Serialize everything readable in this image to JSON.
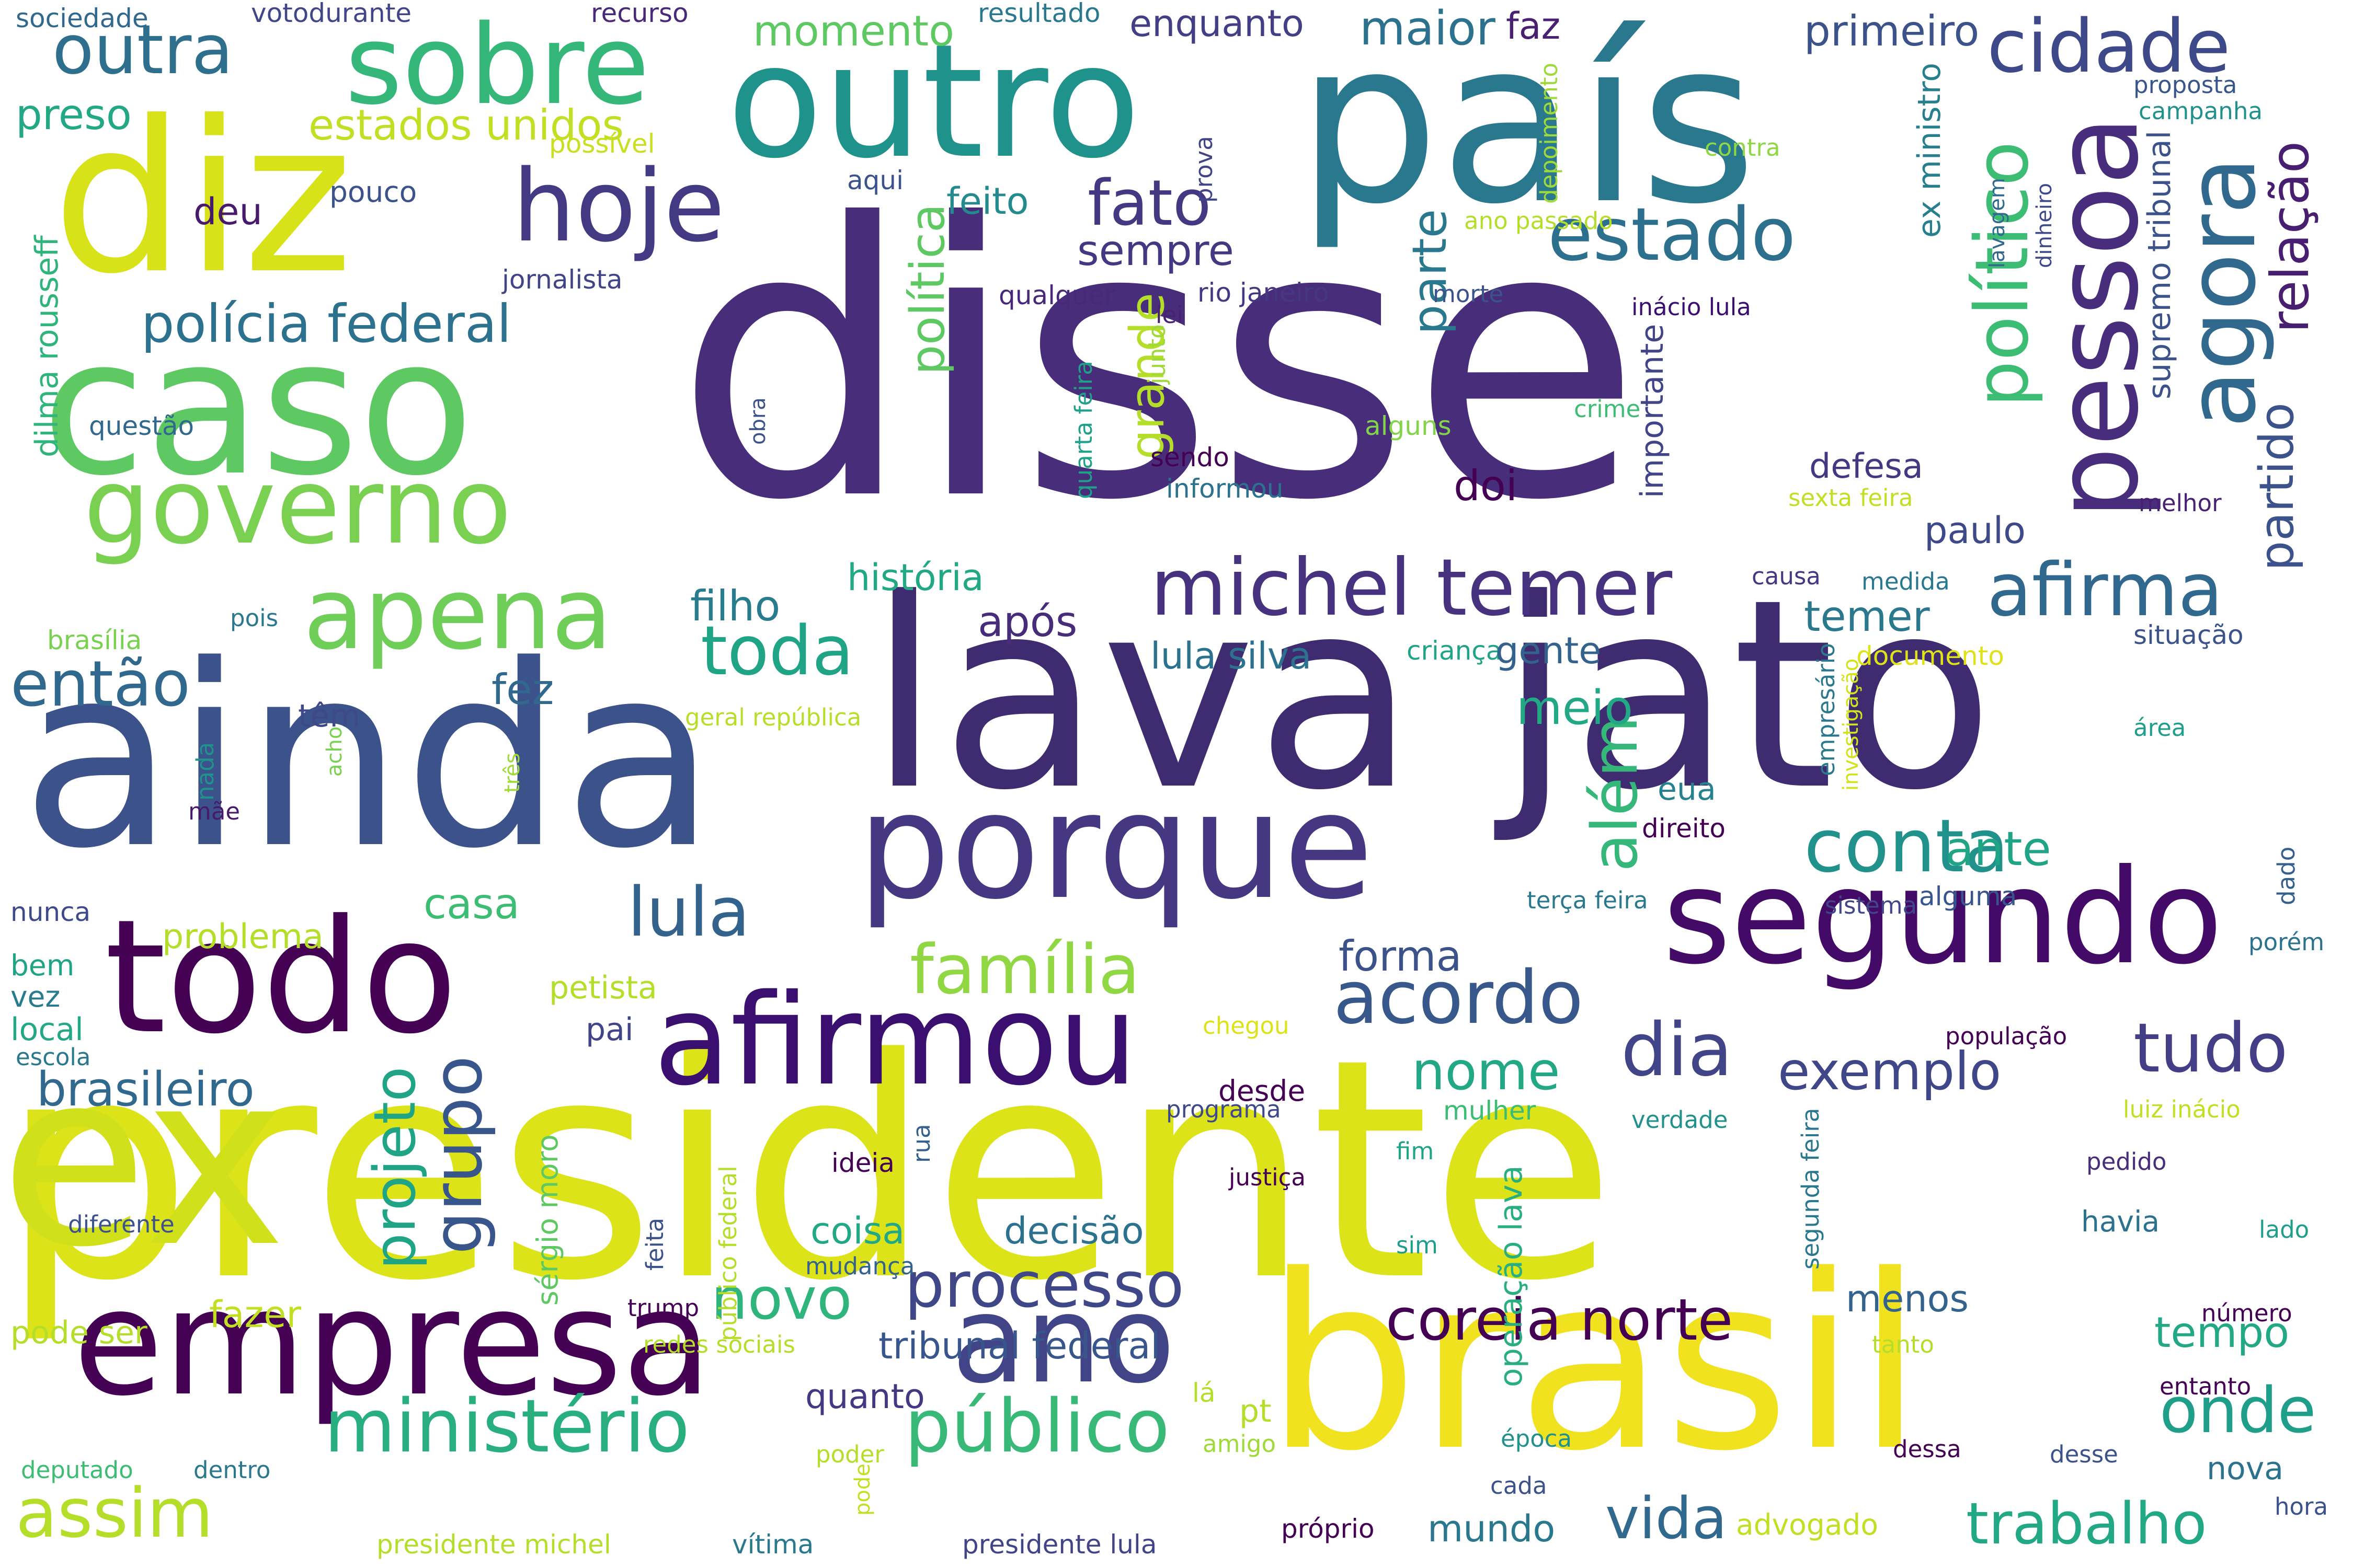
{
  "words": [
    {
      "text": "disse",
      "color": "#482d7a"
    },
    {
      "text": "presidente",
      "color": "#dce319"
    },
    {
      "text": "lava jato",
      "color": "#3f2c70"
    },
    {
      "text": "ainda",
      "color": "#3b528b"
    },
    {
      "text": "brasil",
      "color": "#f0e21e"
    },
    {
      "text": "ex",
      "color": "#d0e11c"
    },
    {
      "text": "país",
      "color": "#2a788e"
    },
    {
      "text": "outro",
      "color": "#20928c"
    },
    {
      "text": "diz",
      "color": "#d8e219"
    },
    {
      "text": "caso",
      "color": "#5ec962"
    },
    {
      "text": "todo",
      "color": "#440154"
    },
    {
      "text": "empresa",
      "color": "#440154"
    },
    {
      "text": "porque",
      "color": "#453781"
    },
    {
      "text": "segundo",
      "color": "#440a68"
    },
    {
      "text": "afirmou",
      "color": "#3b0f70"
    },
    {
      "text": "ano",
      "color": "#414487"
    },
    {
      "text": "sobre",
      "color": "#35b779"
    },
    {
      "text": "governo",
      "color": "#7ad151"
    },
    {
      "text": "pessoa",
      "color": "#472d7b"
    },
    {
      "text": "hoje",
      "color": "#443983"
    },
    {
      "text": "agora",
      "color": "#31688e"
    },
    {
      "text": "apena",
      "color": "#6ece58"
    },
    {
      "text": "michel temer",
      "color": "#46327e"
    },
    {
      "text": "ministério",
      "color": "#29af7f"
    },
    {
      "text": "público",
      "color": "#38b977"
    },
    {
      "text": "processo",
      "color": "#3f4788"
    },
    {
      "text": "cidade",
      "color": "#3e4989"
    },
    {
      "text": "político",
      "color": "#3dbc74"
    },
    {
      "text": "afirma",
      "color": "#31688e"
    },
    {
      "text": "estado",
      "color": "#2d708e"
    },
    {
      "text": "conta",
      "color": "#21918c"
    },
    {
      "text": "toda",
      "color": "#20a486"
    },
    {
      "text": "lula",
      "color": "#33638d"
    },
    {
      "text": "família",
      "color": "#90d743"
    },
    {
      "text": "acordo",
      "color": "#38588c"
    },
    {
      "text": "dia",
      "color": "#414487"
    },
    {
      "text": "tudo",
      "color": "#433e85"
    },
    {
      "text": "assim",
      "color": "#b5de2b"
    },
    {
      "text": "trabalho",
      "color": "#22a884"
    },
    {
      "text": "coreia norte",
      "color": "#440154"
    },
    {
      "text": "onde",
      "color": "#1f9e89"
    },
    {
      "text": "fato",
      "color": "#453781"
    },
    {
      "text": "então",
      "color": "#31688e"
    },
    {
      "text": "grupo",
      "color": "#39568c"
    },
    {
      "text": "além",
      "color": "#35b779"
    },
    {
      "text": "novo",
      "color": "#2fb47c"
    },
    {
      "text": "vida",
      "color": "#31688e"
    },
    {
      "text": "exemplo",
      "color": "#3f4788"
    },
    {
      "text": "relação",
      "color": "#481f70"
    },
    {
      "text": "polícia federal",
      "color": "#2c728e"
    },
    {
      "text": "outra",
      "color": "#2e6f8e"
    },
    {
      "text": "maior",
      "color": "#2c728e"
    },
    {
      "text": "primeiro",
      "color": "#3b528b"
    },
    {
      "text": "estados unidos",
      "color": "#c2df23"
    },
    {
      "text": "momento",
      "color": "#5ec962"
    },
    {
      "text": "enquanto",
      "color": "#433e85"
    },
    {
      "text": "faz",
      "color": "#482173"
    },
    {
      "text": "resultado",
      "color": "#2a788e"
    },
    {
      "text": "recurso",
      "color": "#482878"
    },
    {
      "text": "votodurante",
      "color": "#404688"
    },
    {
      "text": "sociedade",
      "color": "#31688e"
    },
    {
      "text": "preso",
      "color": "#22a884"
    },
    {
      "text": "possível",
      "color": "#c8e020"
    },
    {
      "text": "pouco",
      "color": "#3b528b"
    },
    {
      "text": "aqui",
      "color": "#3b528b"
    },
    {
      "text": "deu",
      "color": "#481a6c"
    },
    {
      "text": "feito",
      "color": "#238a8d"
    },
    {
      "text": "sempre",
      "color": "#453882"
    },
    {
      "text": "política",
      "color": "#5ec962"
    },
    {
      "text": "grande",
      "color": "#b5de2b"
    },
    {
      "text": "parte",
      "color": "#2a788e"
    },
    {
      "text": "jornalista",
      "color": "#414487"
    },
    {
      "text": "qualquer",
      "color": "#482878"
    },
    {
      "text": "rio janeiro",
      "color": "#453781"
    },
    {
      "text": "lei",
      "color": "#482173"
    },
    {
      "text": "morte",
      "color": "#3b528b"
    },
    {
      "text": "ano passado",
      "color": "#b5de2b"
    },
    {
      "text": "depoimento",
      "color": "#9fda3a"
    },
    {
      "text": "prova",
      "color": "#414487"
    },
    {
      "text": "contra",
      "color": "#8fd744"
    },
    {
      "text": "proposta",
      "color": "#39568c"
    },
    {
      "text": "campanha",
      "color": "#21918c"
    },
    {
      "text": "ex ministro",
      "color": "#277f8e"
    },
    {
      "text": "supremo tribunal",
      "color": "#3b528b"
    },
    {
      "text": "dinheiro",
      "color": "#3e4989"
    },
    {
      "text": "lavagem",
      "color": "#31688e"
    },
    {
      "text": "inácio lula",
      "color": "#3b0f70"
    },
    {
      "text": "partido",
      "color": "#3b528b"
    },
    {
      "text": "importante",
      "color": "#414487"
    },
    {
      "text": "defesa",
      "color": "#453781"
    },
    {
      "text": "paulo",
      "color": "#3e4989"
    },
    {
      "text": "melhor",
      "color": "#482173"
    },
    {
      "text": "sexta feira",
      "color": "#c2df23"
    },
    {
      "text": "crime",
      "color": "#3dbc74"
    },
    {
      "text": "alguns",
      "color": "#84d44b"
    },
    {
      "text": "sendo",
      "color": "#440154"
    },
    {
      "text": "informou",
      "color": "#2c728e"
    },
    {
      "text": "obra",
      "color": "#3b528b"
    },
    {
      "text": "junto",
      "color": "#9fda3a"
    },
    {
      "text": "quarta feira",
      "color": "#1fa088"
    },
    {
      "text": "doi",
      "color": "#440154"
    },
    {
      "text": "questão",
      "color": "#31688e"
    },
    {
      "text": "dilma rousseff",
      "color": "#2fb47c"
    },
    {
      "text": "brasília",
      "color": "#7ad151"
    },
    {
      "text": "pois",
      "color": "#2a788e"
    },
    {
      "text": "história",
      "color": "#22a884"
    },
    {
      "text": "filho",
      "color": "#287c8e"
    },
    {
      "text": "após",
      "color": "#472c7a"
    },
    {
      "text": "temer",
      "color": "#2a788e"
    },
    {
      "text": "lula silva",
      "color": "#2c728e"
    },
    {
      "text": "criança",
      "color": "#20a386"
    },
    {
      "text": "gente",
      "color": "#33638d"
    },
    {
      "text": "causa",
      "color": "#453781"
    },
    {
      "text": "medida",
      "color": "#2a788e"
    },
    {
      "text": "documento",
      "color": "#dde318"
    },
    {
      "text": "situação",
      "color": "#3b528b"
    },
    {
      "text": "meio",
      "color": "#22a884"
    },
    {
      "text": "fez",
      "color": "#31688e"
    },
    {
      "text": "têm",
      "color": "#3e4989"
    },
    {
      "text": "geral república",
      "color": "#b8de29"
    },
    {
      "text": "empresário",
      "color": "#2a788e"
    },
    {
      "text": "investigação",
      "color": "#d2e21b"
    },
    {
      "text": "área",
      "color": "#1f9e89"
    },
    {
      "text": "nada",
      "color": "#21918c"
    },
    {
      "text": "acho",
      "color": "#7ad151"
    },
    {
      "text": "três",
      "color": "#a0da39"
    },
    {
      "text": "mãe",
      "color": "#481a6c"
    },
    {
      "text": "eua",
      "color": "#26828e"
    },
    {
      "text": "direito",
      "color": "#440154"
    },
    {
      "text": "ante",
      "color": "#20a486"
    },
    {
      "text": "dado",
      "color": "#355f8d"
    },
    {
      "text": "alguma",
      "color": "#39568c"
    },
    {
      "text": "porém",
      "color": "#2c728e"
    },
    {
      "text": "sistema",
      "color": "#404688"
    },
    {
      "text": "terça feira",
      "color": "#2a788e"
    },
    {
      "text": "nunca",
      "color": "#3e4a89"
    },
    {
      "text": "casa",
      "color": "#3dbc74"
    },
    {
      "text": "problema",
      "color": "#b5de2b"
    },
    {
      "text": "forma",
      "color": "#3b528b"
    },
    {
      "text": "bem",
      "color": "#20a486"
    },
    {
      "text": "vez",
      "color": "#287c8e"
    },
    {
      "text": "local",
      "color": "#22a884"
    },
    {
      "text": "escola",
      "color": "#2a788e"
    },
    {
      "text": "petista",
      "color": "#b5de2b"
    },
    {
      "text": "pai",
      "color": "#414487"
    },
    {
      "text": "chegou",
      "color": "#dce319"
    },
    {
      "text": "projeto",
      "color": "#20a486"
    },
    {
      "text": "sérgio moro",
      "color": "#5ec962"
    },
    {
      "text": "nome",
      "color": "#22a884"
    },
    {
      "text": "desde",
      "color": "#440154"
    },
    {
      "text": "programa",
      "color": "#3e4989"
    },
    {
      "text": "mulher",
      "color": "#3dbc74"
    },
    {
      "text": "verdade",
      "color": "#21918c"
    },
    {
      "text": "população",
      "color": "#440154"
    },
    {
      "text": "luiz inácio",
      "color": "#c2df23"
    },
    {
      "text": "brasileiro",
      "color": "#31688e"
    },
    {
      "text": "ideia",
      "color": "#440154"
    },
    {
      "text": "rua",
      "color": "#355f8d"
    },
    {
      "text": "público federal",
      "color": "#b5de2b"
    },
    {
      "text": "feita",
      "color": "#3b528b"
    },
    {
      "text": "justiça",
      "color": "#440154"
    },
    {
      "text": "fim",
      "color": "#20a486"
    },
    {
      "text": "sim",
      "color": "#1f9e89"
    },
    {
      "text": "segunda feira",
      "color": "#2a788e"
    },
    {
      "text": "operação lava",
      "color": "#29af7f"
    },
    {
      "text": "pedido",
      "color": "#472d7b"
    },
    {
      "text": "havia",
      "color": "#2c728e"
    },
    {
      "text": "lado",
      "color": "#1f9e89"
    },
    {
      "text": "diferente",
      "color": "#3b528b"
    },
    {
      "text": "coisa",
      "color": "#22a884"
    },
    {
      "text": "decisão",
      "color": "#2c728e"
    },
    {
      "text": "mudança",
      "color": "#33638d"
    },
    {
      "text": "menos",
      "color": "#33638d"
    },
    {
      "text": "tempo",
      "color": "#22a884"
    },
    {
      "text": "número",
      "color": "#440154"
    },
    {
      "text": "pode ser",
      "color": "#b5de2b"
    },
    {
      "text": "fazer",
      "color": "#c2df23"
    },
    {
      "text": "trump",
      "color": "#440154"
    },
    {
      "text": "redes sociais",
      "color": "#b5de2b"
    },
    {
      "text": "tribunal federal",
      "color": "#39568c"
    },
    {
      "text": "tanto",
      "color": "#b5de2b"
    },
    {
      "text": "entanto",
      "color": "#440154"
    },
    {
      "text": "quanto",
      "color": "#453781"
    },
    {
      "text": "lá",
      "color": "#b5de2b"
    },
    {
      "text": "pt",
      "color": "#b5de2b"
    },
    {
      "text": "época",
      "color": "#21918c"
    },
    {
      "text": "nova",
      "color": "#2c728e"
    },
    {
      "text": "deputado",
      "color": "#3dbc74"
    },
    {
      "text": "dentro",
      "color": "#2a788e"
    },
    {
      "text": "poder",
      "color": "#b5de2b"
    },
    {
      "text": "amigo",
      "color": "#a0da39"
    },
    {
      "text": "dessa",
      "color": "#440154"
    },
    {
      "text": "desse",
      "color": "#3b528b"
    },
    {
      "text": "cada",
      "color": "#3b528b"
    },
    {
      "text": "pode",
      "color": "#c2df23"
    },
    {
      "text": "presidente michel",
      "color": "#b5de2b"
    },
    {
      "text": "vítima",
      "color": "#2a788e"
    },
    {
      "text": "presidente lula",
      "color": "#414487"
    },
    {
      "text": "próprio",
      "color": "#440154"
    },
    {
      "text": "mundo",
      "color": "#2a788e"
    },
    {
      "text": "advogado",
      "color": "#c2df23"
    },
    {
      "text": "hora",
      "color": "#3b528b"
    }
  ]
}
